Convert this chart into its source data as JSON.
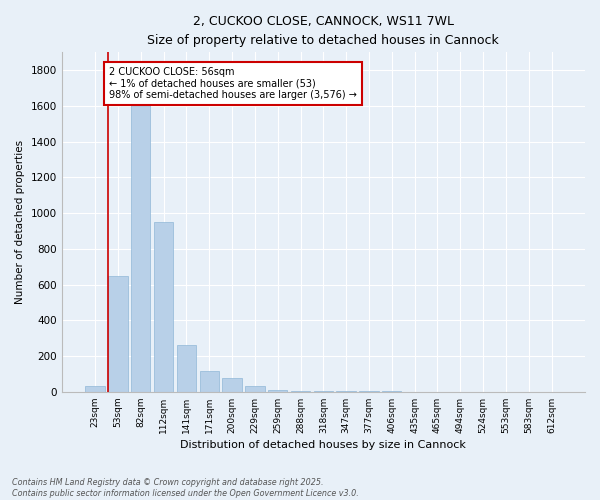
{
  "title": "2, CUCKOO CLOSE, CANNOCK, WS11 7WL",
  "subtitle": "Size of property relative to detached houses in Cannock",
  "xlabel": "Distribution of detached houses by size in Cannock",
  "ylabel": "Number of detached properties",
  "bar_color": "#b8d0e8",
  "bar_edge_color": "#90b8d8",
  "background_color": "#e8f0f8",
  "grid_color": "#ffffff",
  "annotation_line_color": "#cc0000",
  "annotation_box_color": "#cc0000",
  "annotation_text": "2 CUCKOO CLOSE: 56sqm\n← 1% of detached houses are smaller (53)\n98% of semi-detached houses are larger (3,576) →",
  "footnote": "Contains HM Land Registry data © Crown copyright and database right 2025.\nContains public sector information licensed under the Open Government Licence v3.0.",
  "categories": [
    "23sqm",
    "53sqm",
    "82sqm",
    "112sqm",
    "141sqm",
    "171sqm",
    "200sqm",
    "229sqm",
    "259sqm",
    "288sqm",
    "318sqm",
    "347sqm",
    "377sqm",
    "406sqm",
    "435sqm",
    "465sqm",
    "494sqm",
    "524sqm",
    "553sqm",
    "583sqm",
    "612sqm"
  ],
  "values": [
    35,
    650,
    1700,
    950,
    260,
    115,
    80,
    35,
    10,
    5,
    3,
    2,
    2,
    3,
    0,
    0,
    0,
    0,
    0,
    0,
    0
  ],
  "ylim": [
    0,
    1900
  ],
  "yticks": [
    0,
    200,
    400,
    600,
    800,
    1000,
    1200,
    1400,
    1600,
    1800
  ],
  "marker_bin_index": 0.55
}
